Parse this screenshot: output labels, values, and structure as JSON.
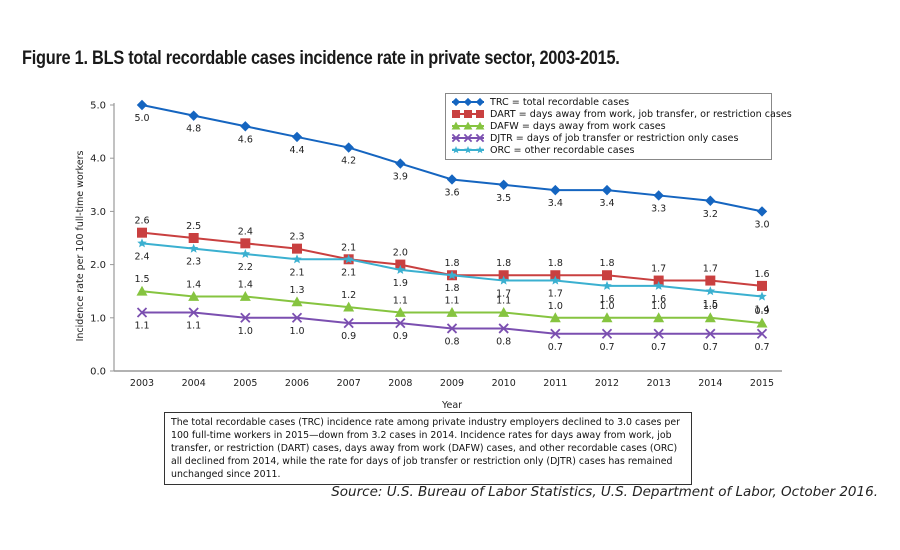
{
  "figure": {
    "title": "Figure 1. BLS total recordable cases incidence rate in private sector, 2003-2015.",
    "note": "The total recordable cases (TRC) incidence rate among private industry employers declined to 3.0 cases per 100 full-time workers in 2015—down from 3.2 cases in 2014. Incidence rates for days away from work, job transfer, or restriction (DART) cases, days away from work (DAFW) cases, and other recordable cases (ORC) all declined from 2014, while the rate for days of job transfer or restriction only (DJTR) cases has remained unchanged since 2011.",
    "source": "Source: U.S. Bureau of Labor Statistics, U.S. Department of Labor, October 2016."
  },
  "chart_data": {
    "type": "line",
    "title": "Figure 1. BLS total recordable cases incidence rate in private sector, 2003-2015.",
    "xlabel": "Year",
    "ylabel": "Incidence rate per 100 full-time workers",
    "ylim": [
      0,
      5
    ],
    "yticks": [
      "0.0",
      "1.0",
      "2.0",
      "3.0",
      "4.0",
      "5.0"
    ],
    "x": [
      "2003",
      "2004",
      "2005",
      "2006",
      "2007",
      "2008",
      "2009",
      "2010",
      "2011",
      "2012",
      "2013",
      "2014",
      "2015"
    ],
    "grid": false,
    "legend_position": "top-right",
    "series": [
      {
        "key": "trc",
        "name": "TRC = total recordable cases",
        "color": "#1565c0",
        "marker": "diamond",
        "label_pos": "below",
        "values": [
          5.0,
          4.8,
          4.6,
          4.4,
          4.2,
          3.9,
          3.6,
          3.5,
          3.4,
          3.4,
          3.3,
          3.2,
          3.0
        ]
      },
      {
        "key": "dart",
        "name": "DART = days away from work, job transfer, or restriction cases",
        "color": "#c94040",
        "marker": "square",
        "label_pos": "above",
        "values": [
          2.6,
          2.5,
          2.4,
          2.3,
          2.1,
          2.0,
          1.8,
          1.8,
          1.8,
          1.8,
          1.7,
          1.7,
          1.6
        ]
      },
      {
        "key": "dafw",
        "name": "DAFW = days away from work cases",
        "color": "#86c440",
        "marker": "triangle",
        "label_pos": "above",
        "values": [
          1.5,
          1.4,
          1.4,
          1.3,
          1.2,
          1.1,
          1.1,
          1.1,
          1.0,
          1.0,
          1.0,
          1.0,
          0.9
        ]
      },
      {
        "key": "djtr",
        "name": "DJTR = days of job transfer or restriction only cases",
        "color": "#7b4fb0",
        "marker": "x",
        "label_pos": "below",
        "values": [
          1.1,
          1.1,
          1.0,
          1.0,
          0.9,
          0.9,
          0.8,
          0.8,
          0.7,
          0.7,
          0.7,
          0.7,
          0.7
        ]
      },
      {
        "key": "orc",
        "name": "ORC = other recordable cases",
        "color": "#3bb0d0",
        "marker": "star",
        "label_pos": "below",
        "values": [
          2.4,
          2.3,
          2.2,
          2.1,
          2.1,
          1.9,
          1.8,
          1.7,
          1.7,
          1.6,
          1.6,
          1.5,
          1.4
        ]
      }
    ]
  }
}
